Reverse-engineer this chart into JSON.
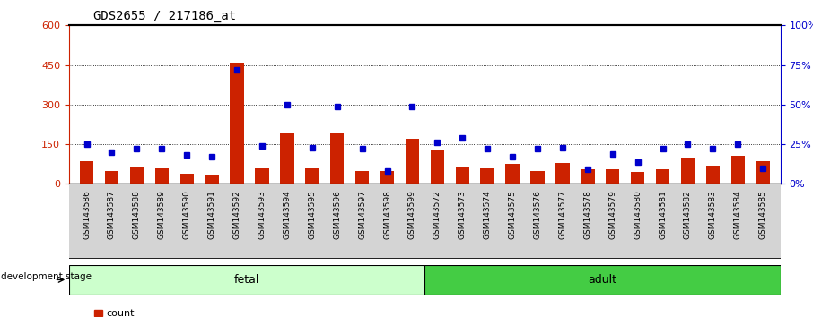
{
  "title": "GDS2655 / 217186_at",
  "samples": [
    "GSM143586",
    "GSM143587",
    "GSM143588",
    "GSM143589",
    "GSM143590",
    "GSM143591",
    "GSM143592",
    "GSM143593",
    "GSM143594",
    "GSM143595",
    "GSM143596",
    "GSM143597",
    "GSM143598",
    "GSM143599",
    "GSM143572",
    "GSM143573",
    "GSM143574",
    "GSM143575",
    "GSM143576",
    "GSM143577",
    "GSM143578",
    "GSM143579",
    "GSM143580",
    "GSM143581",
    "GSM143582",
    "GSM143583",
    "GSM143584",
    "GSM143585"
  ],
  "counts": [
    85,
    50,
    65,
    60,
    40,
    35,
    460,
    60,
    195,
    60,
    195,
    50,
    50,
    170,
    125,
    65,
    60,
    75,
    50,
    80,
    55,
    55,
    45,
    55,
    100,
    70,
    105,
    85
  ],
  "percentile_ranks": [
    25,
    20,
    22,
    22,
    18,
    17,
    72,
    24,
    50,
    23,
    49,
    22,
    8,
    49,
    26,
    29,
    22,
    17,
    22,
    23,
    9,
    19,
    14,
    22,
    25,
    22,
    25,
    10
  ],
  "fetal_count": 14,
  "adult_count": 14,
  "bar_color": "#cc2200",
  "marker_color": "#0000cc",
  "fetal_bg": "#ccffcc",
  "adult_bg": "#44cc44",
  "tick_area_bg": "#d4d4d4",
  "plot_bg": "#ffffff",
  "ylim_left": [
    0,
    600
  ],
  "ylim_right": [
    0,
    100
  ],
  "yticks_left": [
    0,
    150,
    300,
    450,
    600
  ],
  "yticks_right": [
    0,
    25,
    50,
    75,
    100
  ],
  "title_fontsize": 10,
  "label_fontsize": 8,
  "tick_fontsize": 7,
  "sample_fontsize": 6.5
}
